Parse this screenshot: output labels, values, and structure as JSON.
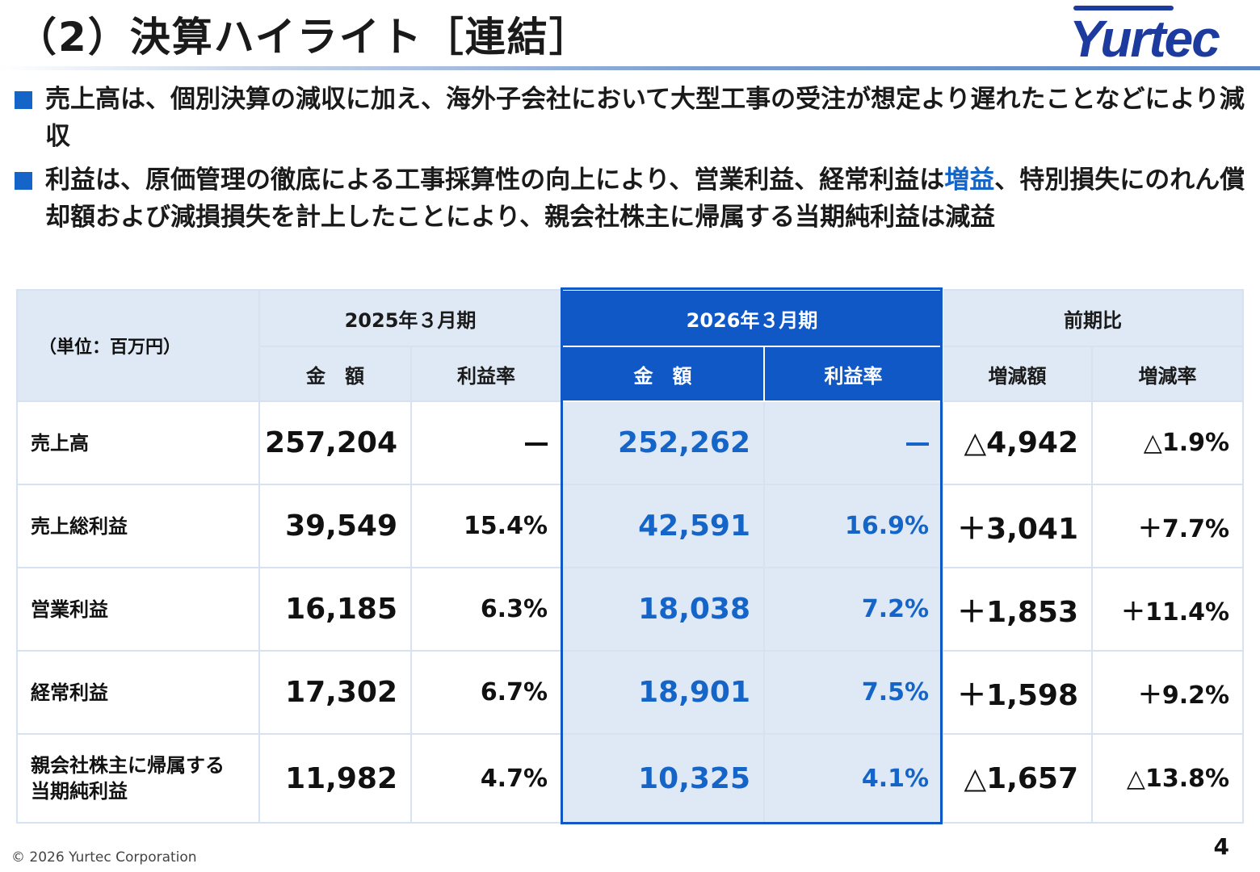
{
  "header": {
    "title": "（2）決算ハイライト［連結］",
    "logo_text": "Yurtec"
  },
  "bullets": [
    {
      "text_before": "売上高は、個別決算の減収に加え、海外子会社において大型工事の受注が想定より遅れたことなどにより減収",
      "highlight": "",
      "text_after": ""
    },
    {
      "text_before": "利益は、原価管理の徹底による工事採算性の向上により、営業利益、経常利益は",
      "highlight": "増益",
      "text_after": "、特別損失にのれん償却額および減損損失を計上したことにより、親会社株主に帰属する当期純利益は減益"
    }
  ],
  "table": {
    "unit_label": "（単位：百万円）",
    "period_prev": "2025年３月期",
    "period_curr": "2026年３月期",
    "compare": "前期比",
    "col_amount": "金　額",
    "col_margin": "利益率",
    "col_change": "増減額",
    "col_change_rate": "増減率",
    "rows": [
      {
        "label": "売上高",
        "prev_amount": "257,204",
        "prev_margin": "ー",
        "curr_amount": "252,262",
        "curr_margin": "ー",
        "change": "△4,942",
        "change_rate": "△1.9%"
      },
      {
        "label": "売上総利益",
        "prev_amount": "39,549",
        "prev_margin": "15.4%",
        "curr_amount": "42,591",
        "curr_margin": "16.9%",
        "change": "＋3,041",
        "change_rate": "＋7.7%"
      },
      {
        "label": "営業利益",
        "prev_amount": "16,185",
        "prev_margin": "6.3%",
        "curr_amount": "18,038",
        "curr_margin": "7.2%",
        "change": "＋1,853",
        "change_rate": "＋11.4%"
      },
      {
        "label": "経常利益",
        "prev_amount": "17,302",
        "prev_margin": "6.7%",
        "curr_amount": "18,901",
        "curr_margin": "7.5%",
        "change": "＋1,598",
        "change_rate": "＋9.2%"
      },
      {
        "label": "親会社株主に帰属する当期純利益",
        "label_line1": "親会社株主に帰属する",
        "label_line2": "当期純利益",
        "prev_amount": "11,982",
        "prev_margin": "4.7%",
        "curr_amount": "10,325",
        "curr_margin": "4.1%",
        "change": "△1,657",
        "change_rate": "△13.8%"
      }
    ]
  },
  "footer": {
    "copyright": "© 2026 Yurtec Corporation",
    "page_number": "4"
  },
  "colors": {
    "accent": "#1565c8",
    "header_fill": "#1158c7",
    "light_fill": "#dfe9f5"
  }
}
